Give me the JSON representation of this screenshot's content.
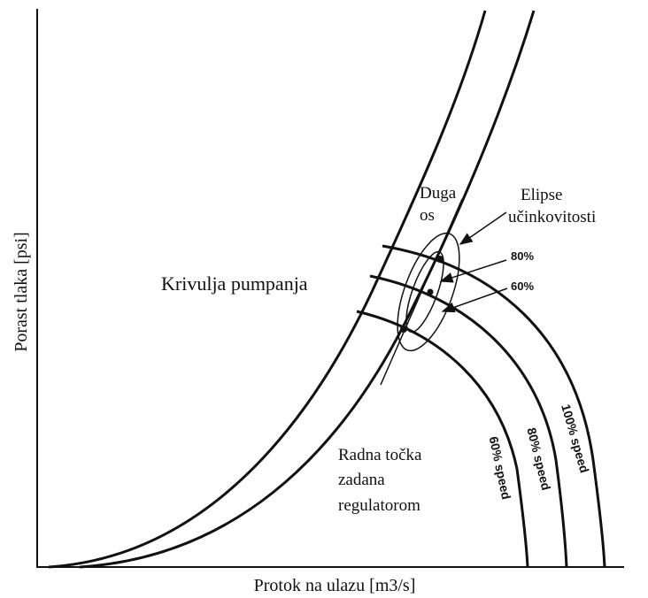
{
  "axes": {
    "y_label": "Porast tlaka [psi]",
    "x_label": "Protok na ulazu [m3/s]"
  },
  "labels": {
    "surge_line": "Krivulja pumpanja",
    "long_axis": [
      "Duga",
      "os"
    ],
    "efficiency_ellipses": [
      "Elipse",
      "učinkovitosti"
    ],
    "ellipse_80": "80%",
    "ellipse_60": "60%",
    "operating_point": [
      "Radna točka",
      "zadana",
      "regulatorom"
    ],
    "speed_lines": [
      "60% speed",
      "80% speed",
      "100% speed"
    ]
  }
}
